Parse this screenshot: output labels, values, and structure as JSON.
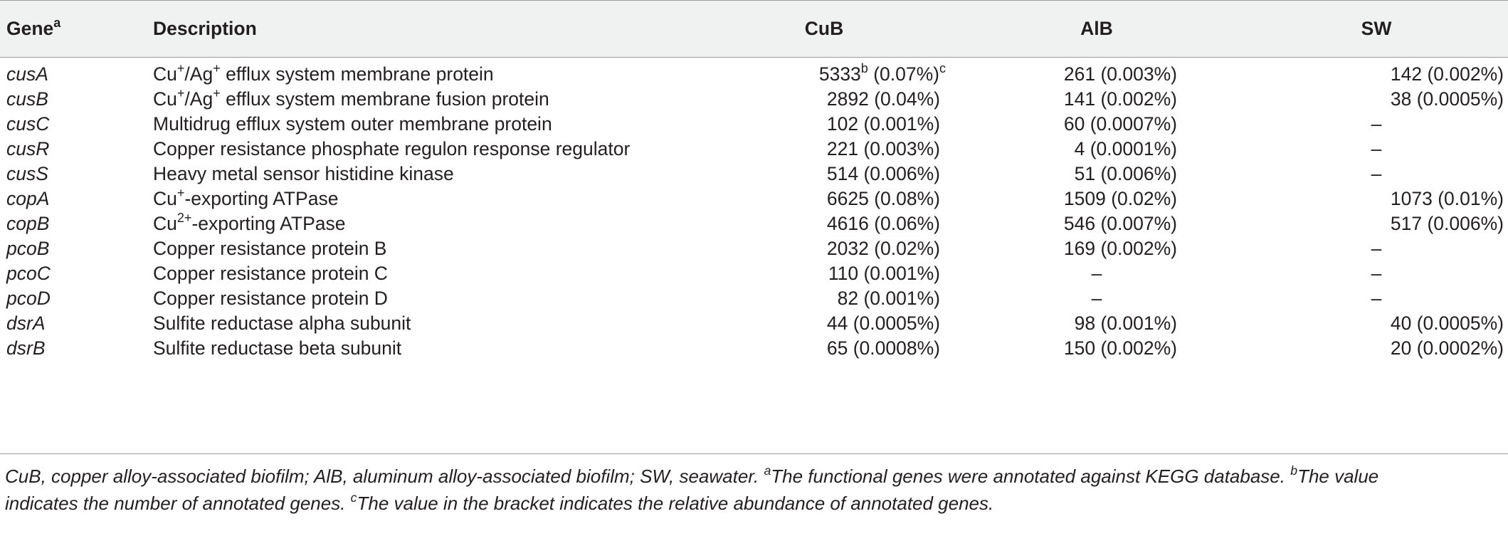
{
  "header": {
    "gene": "Gene",
    "gene_sup": "a",
    "description": "Description",
    "cub": "CuB",
    "alb": "AlB",
    "sw": "SW"
  },
  "rows": [
    {
      "gene": "cusA",
      "desc_parts": [
        "Cu",
        "+",
        "/Ag",
        "+",
        " efflux system membrane protein"
      ],
      "cub": "5333",
      "cub_sup": "b",
      "cub_pct": " (0.07%)",
      "cub_sup2": "c",
      "alb": "261 (0.003%)",
      "sw": "142 (0.002%)"
    },
    {
      "gene": "cusB",
      "desc_parts": [
        "Cu",
        "+",
        "/Ag",
        "+",
        " efflux system membrane fusion protein"
      ],
      "cub": "2892 (0.04%)",
      "alb": "141 (0.002%)",
      "sw": "38 (0.0005%)"
    },
    {
      "gene": "cusC",
      "desc": "Multidrug efflux system outer membrane protein",
      "cub": "102 (0.001%)",
      "alb": "60 (0.0007%)",
      "sw": "–"
    },
    {
      "gene": "cusR",
      "desc": "Copper resistance phosphate regulon response regulator",
      "cub": "221 (0.003%)",
      "alb": "4 (0.0001%)",
      "sw": "–"
    },
    {
      "gene": "cusS",
      "desc": "Heavy metal sensor histidine kinase",
      "cub": "514 (0.006%)",
      "alb": "51 (0.006%)",
      "sw": "–"
    },
    {
      "gene": "copA",
      "desc_parts": [
        "Cu",
        "+",
        "-exporting ATPase"
      ],
      "cub": "6625 (0.08%)",
      "alb": "1509 (0.02%)",
      "sw": "1073 (0.01%)"
    },
    {
      "gene": "copB",
      "desc_parts": [
        "Cu",
        "2+",
        "-exporting ATPase"
      ],
      "cub": "4616 (0.06%)",
      "alb": "546 (0.007%)",
      "sw": "517 (0.006%)"
    },
    {
      "gene": "pcoB",
      "desc": "Copper resistance protein B",
      "cub": "2032 (0.02%)",
      "alb": "169 (0.002%)",
      "sw": "–"
    },
    {
      "gene": "pcoC",
      "desc": "Copper resistance protein C",
      "cub": "110 (0.001%)",
      "alb": "–",
      "sw": "–"
    },
    {
      "gene": "pcoD",
      "desc": "Copper resistance protein D",
      "cub": "82 (0.001%)",
      "alb": "–",
      "sw": "–"
    },
    {
      "gene": "dsrA",
      "desc": "Sulfite reductase alpha subunit",
      "cub": "44 (0.0005%)",
      "alb": "98 (0.001%)",
      "sw": "40 (0.0005%)"
    },
    {
      "gene": "dsrB",
      "desc": "Sulfite reductase beta subunit",
      "cub": "65 (0.0008%)",
      "alb": "150 (0.002%)",
      "sw": "20 (0.0002%)"
    }
  ],
  "footnote": {
    "line1": "CuB, copper alloy-associated biofilm; AlB, aluminum alloy-associated biofilm; SW, seawater. ",
    "sup_a": "a",
    "note_a": "The functional genes were annotated against KEGG database. ",
    "sup_b": "b",
    "note_b_1": "The value",
    "note_b_2": "indicates the number of annotated genes. ",
    "sup_c": "c",
    "note_c": "The value in the bracket indicates the relative abundance of annotated genes."
  }
}
